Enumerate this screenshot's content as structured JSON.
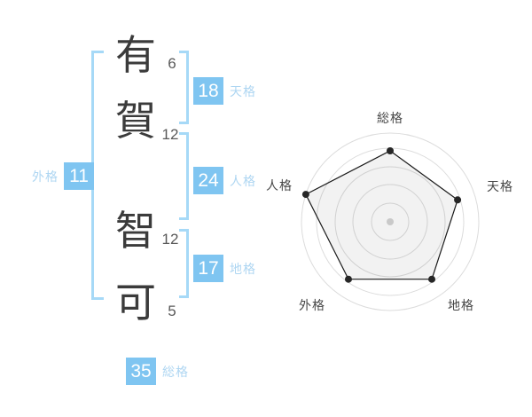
{
  "name_panel": {
    "characters": [
      {
        "char": "有",
        "strokes": "6"
      },
      {
        "char": "賀",
        "strokes": "12"
      },
      {
        "char": "智",
        "strokes": "12"
      },
      {
        "char": "可",
        "strokes": "5"
      }
    ],
    "scores": [
      {
        "id": "tenkaku",
        "value": "18",
        "label": "天格"
      },
      {
        "id": "jinkaku",
        "value": "24",
        "label": "人格"
      },
      {
        "id": "chikaku",
        "value": "17",
        "label": "地格"
      },
      {
        "id": "gaikaku",
        "value": "11",
        "label": "外格"
      },
      {
        "id": "soukaku",
        "value": "35",
        "label": "総格"
      }
    ]
  },
  "chart_data": {
    "type": "radar",
    "axes": [
      {
        "label": "総格",
        "value": 35,
        "radius_pct": 80
      },
      {
        "label": "天格",
        "value": 18,
        "radius_pct": 80
      },
      {
        "label": "地格",
        "value": 17,
        "radius_pct": 80
      },
      {
        "label": "外格",
        "value": 11,
        "radius_pct": 80
      },
      {
        "label": "人格",
        "value": 24,
        "radius_pct": 100
      }
    ],
    "rings_pct": [
      21,
      42,
      62,
      83,
      100
    ],
    "start_angle_deg": -90,
    "max_radius_px": 100,
    "legend": "none",
    "grid": "circular",
    "colors": {
      "ring": "#dcdcdc",
      "fill": "rgba(34,34,34,0.06)",
      "stroke": "#1a1a1a",
      "point": "#262626",
      "center_dot": "#c9c9c9"
    }
  },
  "colors": {
    "background": "#ffffff",
    "accent_blue": "#7fc5f1",
    "label_blue": "#aed6f2",
    "bracket_blue": "#a6d9f7",
    "kanji_dark": "#3b3b3b",
    "stroke_num_gray": "#595959",
    "radar_label_gray": "#474747"
  }
}
